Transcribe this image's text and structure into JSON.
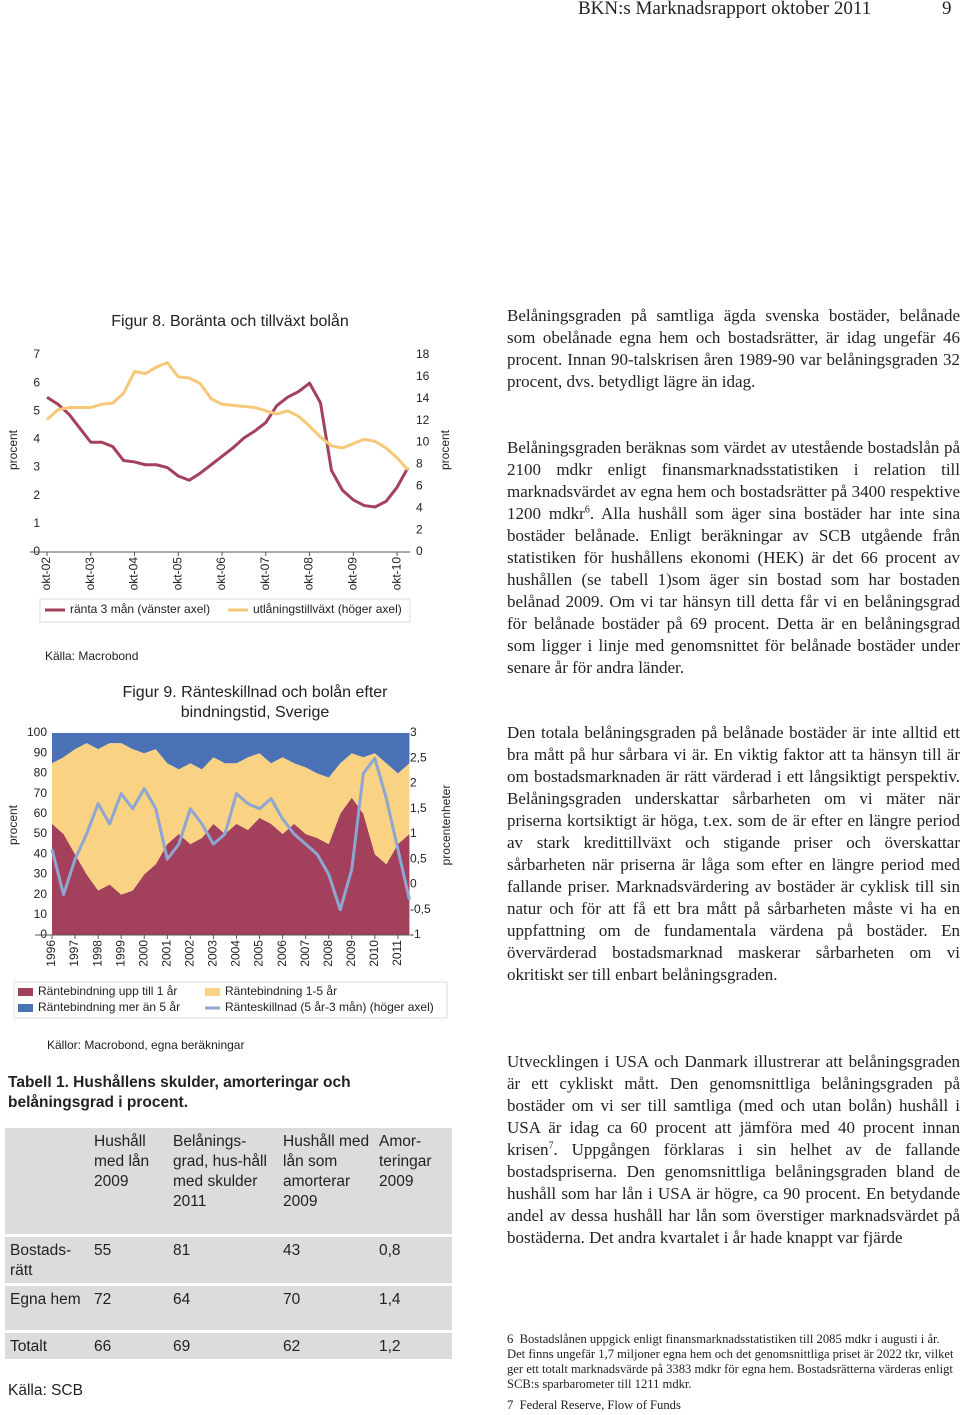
{
  "header": {
    "title": "BKN:s Marknadsrapport oktober 2011",
    "page": "9"
  },
  "chart_data": [
    {
      "type": "line",
      "title": "Figur 8. Boränta och tillväxt bolån",
      "ylabel": "procent",
      "y2label": "procent",
      "categories": [
        "okt-02",
        null,
        null,
        null,
        "okt-03",
        null,
        null,
        null,
        "okt-04",
        null,
        null,
        null,
        "okt-05",
        null,
        null,
        null,
        "okt-06",
        null,
        null,
        null,
        "okt-07",
        null,
        null,
        null,
        "okt-08",
        null,
        null,
        null,
        "okt-09",
        null,
        null,
        null,
        "okt-10",
        null
      ],
      "series": [
        {
          "name": "ränta 3 mån (vänster axel)",
          "color": "#a3405b",
          "values": [
            5.5,
            5.25,
            4.9,
            4.4,
            3.9,
            3.9,
            3.75,
            3.25,
            3.2,
            3.1,
            3.1,
            3.0,
            2.7,
            2.55,
            2.8,
            3.1,
            3.4,
            3.7,
            4.05,
            4.3,
            4.6,
            5.2,
            5.5,
            5.7,
            6.0,
            5.3,
            2.9,
            2.2,
            1.85,
            1.65,
            1.6,
            1.8,
            2.3,
            3.0
          ]
        },
        {
          "name": "utlåningstillväxt (höger axel)",
          "color": "#f6c878",
          "axis": "y2",
          "values": [
            12.1,
            13.0,
            13.2,
            13.2,
            13.2,
            13.5,
            13.6,
            14.5,
            16.5,
            16.3,
            16.9,
            17.3,
            16.0,
            15.9,
            15.4,
            14.0,
            13.5,
            13.4,
            13.3,
            13.2,
            12.9,
            12.6,
            12.9,
            12.4,
            11.5,
            10.5,
            9.7,
            9.5,
            9.9,
            10.3,
            10.1,
            9.5,
            8.6,
            7.5
          ]
        }
      ],
      "ylim": [
        0,
        7
      ],
      "yticks": [
        0,
        1,
        2,
        3,
        4,
        5,
        6,
        7
      ],
      "y2lim": [
        0,
        18
      ],
      "y2ticks": [
        0,
        2,
        4,
        6,
        8,
        10,
        12,
        14,
        16,
        18
      ],
      "source": "Källa: Macrobond"
    },
    {
      "type": "area",
      "stacked": true,
      "title": "Figur 9. Ränteskillnad och bolån efter bindningstid, Sverige",
      "ylabel": "procent",
      "y2label": "procentenheter",
      "categories": [
        "1996",
        null,
        "1997",
        null,
        "1998",
        null,
        "1999",
        null,
        "2000",
        null,
        "2001",
        null,
        "2002",
        null,
        "2003",
        null,
        "2004",
        null,
        "2005",
        null,
        "2006",
        null,
        "2007",
        null,
        "2008",
        null,
        "2009",
        null,
        "2010",
        null,
        "2011",
        null
      ],
      "series": [
        {
          "name": "Räntebindning upp till 1 år",
          "color": "#a3405b",
          "values": [
            55,
            50,
            40,
            30,
            22,
            25,
            20,
            22,
            30,
            35,
            45,
            50,
            45,
            48,
            55,
            50,
            55,
            52,
            58,
            55,
            50,
            55,
            50,
            48,
            45,
            60,
            68,
            60,
            40,
            35,
            45,
            50
          ]
        },
        {
          "name": "Räntebindning 1-5 år",
          "color": "#f9d283",
          "values": [
            30,
            38,
            52,
            65,
            70,
            70,
            75,
            70,
            60,
            57,
            40,
            32,
            40,
            34,
            33,
            35,
            30,
            36,
            32,
            30,
            38,
            30,
            33,
            32,
            33,
            25,
            22,
            28,
            50,
            50,
            35,
            35
          ]
        },
        {
          "name": "Räntebindning mer än 5 år",
          "color": "#4a70b6",
          "values": [
            15,
            12,
            8,
            5,
            8,
            5,
            5,
            8,
            10,
            8,
            15,
            18,
            15,
            18,
            12,
            15,
            15,
            12,
            10,
            15,
            12,
            15,
            17,
            20,
            22,
            15,
            10,
            12,
            10,
            15,
            20,
            15
          ]
        },
        {
          "name": "Ränteskillnad (5 år-3 mån) (höger axel)",
          "color": "#8ea6d2",
          "type": "line",
          "axis": "y2",
          "values": [
            0.7,
            -0.2,
            0.5,
            1.0,
            1.6,
            1.2,
            1.8,
            1.5,
            1.9,
            1.5,
            0.5,
            0.8,
            1.5,
            1.2,
            0.8,
            1.0,
            1.8,
            1.6,
            1.5,
            1.7,
            1.3,
            1.0,
            0.8,
            0.6,
            0.2,
            -0.5,
            0.3,
            2.2,
            2.5,
            1.7,
            0.7,
            -0.3
          ]
        }
      ],
      "ylim": [
        0,
        100
      ],
      "yticks": [
        0,
        10,
        20,
        30,
        40,
        50,
        60,
        70,
        80,
        90,
        100
      ],
      "y2lim": [
        -1,
        3
      ],
      "y2ticks": [
        -1,
        {
          "value": -0.5,
          "label": "-0,5"
        },
        0,
        {
          "value": 0.5,
          "label": "0,5"
        },
        1,
        {
          "value": 1.5,
          "label": "1,5"
        },
        2,
        {
          "value": 2.5,
          "label": "2,5"
        },
        3
      ],
      "source": "Källor: Macrobond, egna beräkningar"
    }
  ],
  "table": {
    "caption": "Tabell 1. Hushållens skulder, amorteringar och belåningsgrad i procent.",
    "header": [
      "Hushåll med lån 2009",
      "Belånings-grad, hus-håll med skulder 2011",
      "Hushåll med lån som amorterar 2009",
      "Amor-teringar 2009"
    ],
    "rows": [
      [
        "Bostads-rätt",
        "55",
        "81",
        "43",
        "0,8"
      ],
      [
        "Egna hem",
        "72",
        "64",
        "70",
        "1,4"
      ],
      [
        "Totalt",
        "66",
        "69",
        "62",
        "1,2"
      ]
    ],
    "source": "Källa: SCB"
  },
  "text": {
    "paragraphs": [
      [
        "Belåningsgraden på samtliga ägda svenska bostäder, belånade som obelånade egna hem och bostadsrätter, är idag ungefär 46 procent. Innan 90-talskrisen åren 1989-90 var belåningsgraden 32 procent, dvs. betydligt lägre än idag."
      ],
      [
        "Belåningsgraden beräknas som värdet av utestående bostadslån på 2100 mdkr enligt finansmarknadsstatistiken i relation till marknadsvärdet av egna hem och bostadsrätter på 3400 respektive 1200 mdkr",
        {
          "sup": "6"
        },
        ". Alla hushåll som äger sina bostäder har inte sina bostäder belånade. Enligt beräkningar av SCB utgående från statistiken för hushållens ekonomi (HEK) är det 66 procent av hushållen (se tabell 1)som äger sin bostad som har bostaden belånad 2009. Om vi tar hänsyn till detta får vi en belåningsgrad för belånade bostäder på 69 procent. Detta är en belåningsgrad som ligger i linje med genomsnittet för belånade bostäder under senare år för andra länder."
      ],
      [
        "Den totala belåningsgraden på belånade bostäder är inte alltid ett bra mått på hur sårbara vi är. En viktig faktor att ta hänsyn till är om bostadsmarknaden är rätt värderad i ett långsiktigt perspektiv. Belåningsgraden underskattar sårbarheten om vi mäter när priserna kortsiktigt är höga, t.ex. som de är efter en längre period av stark kredittillväxt och stigande priser och överskattar sårbarheten när priserna är låga som efter en längre period med fallande priser. Marknadsvärdering av bostäder är cyklisk till sin natur och för att få ett bra mått på sårbarheten måste vi ha en uppfattning om de fundamentala värdena på bostäder. En övervärderad bostadsmarknad maskerar sårbarheten om vi okritiskt ser till enbart belåningsgraden."
      ],
      [
        "Utvecklingen i USA och Danmark illustrerar att belåningsgraden är ett cykliskt mått. Den genomsnittliga belåningsgraden på bostäder om vi ser till samtliga (med och utan bolån) hushåll i USA är idag ca 60 procent att jämföra med 40 procent innan krisen",
        {
          "sup": "7"
        },
        ". Uppgången förklaras i sin helhet av de fallande bostadspriserna. Den genomsnittliga belåningsgraden bland de hushåll som har lån i USA är högre, ca 90 procent. En betydande andel av dessa hushåll har lån som överstiger marknadsvärdet på bostäderna. Det andra kvartalet i år hade knappt var fjärde"
      ]
    ]
  },
  "footnotes": [
    {
      "number": "6",
      "text": "Bostadslånen uppgick enligt finansmarknadsstatistiken till 2085 mdkr i augusti i år. Det finns ungefär 1,7 miljoner egna hem och det genomsnittliga priset är 2022 tkr, vilket ger ett totalt marknadsvärde på 3383 mdkr för egna hem. Bostadsrätterna värderas enligt SCB:s sparbarometer till 1211 mdkr."
    },
    {
      "number": "7",
      "text": "Federal Reserve, Flow of Funds"
    }
  ]
}
